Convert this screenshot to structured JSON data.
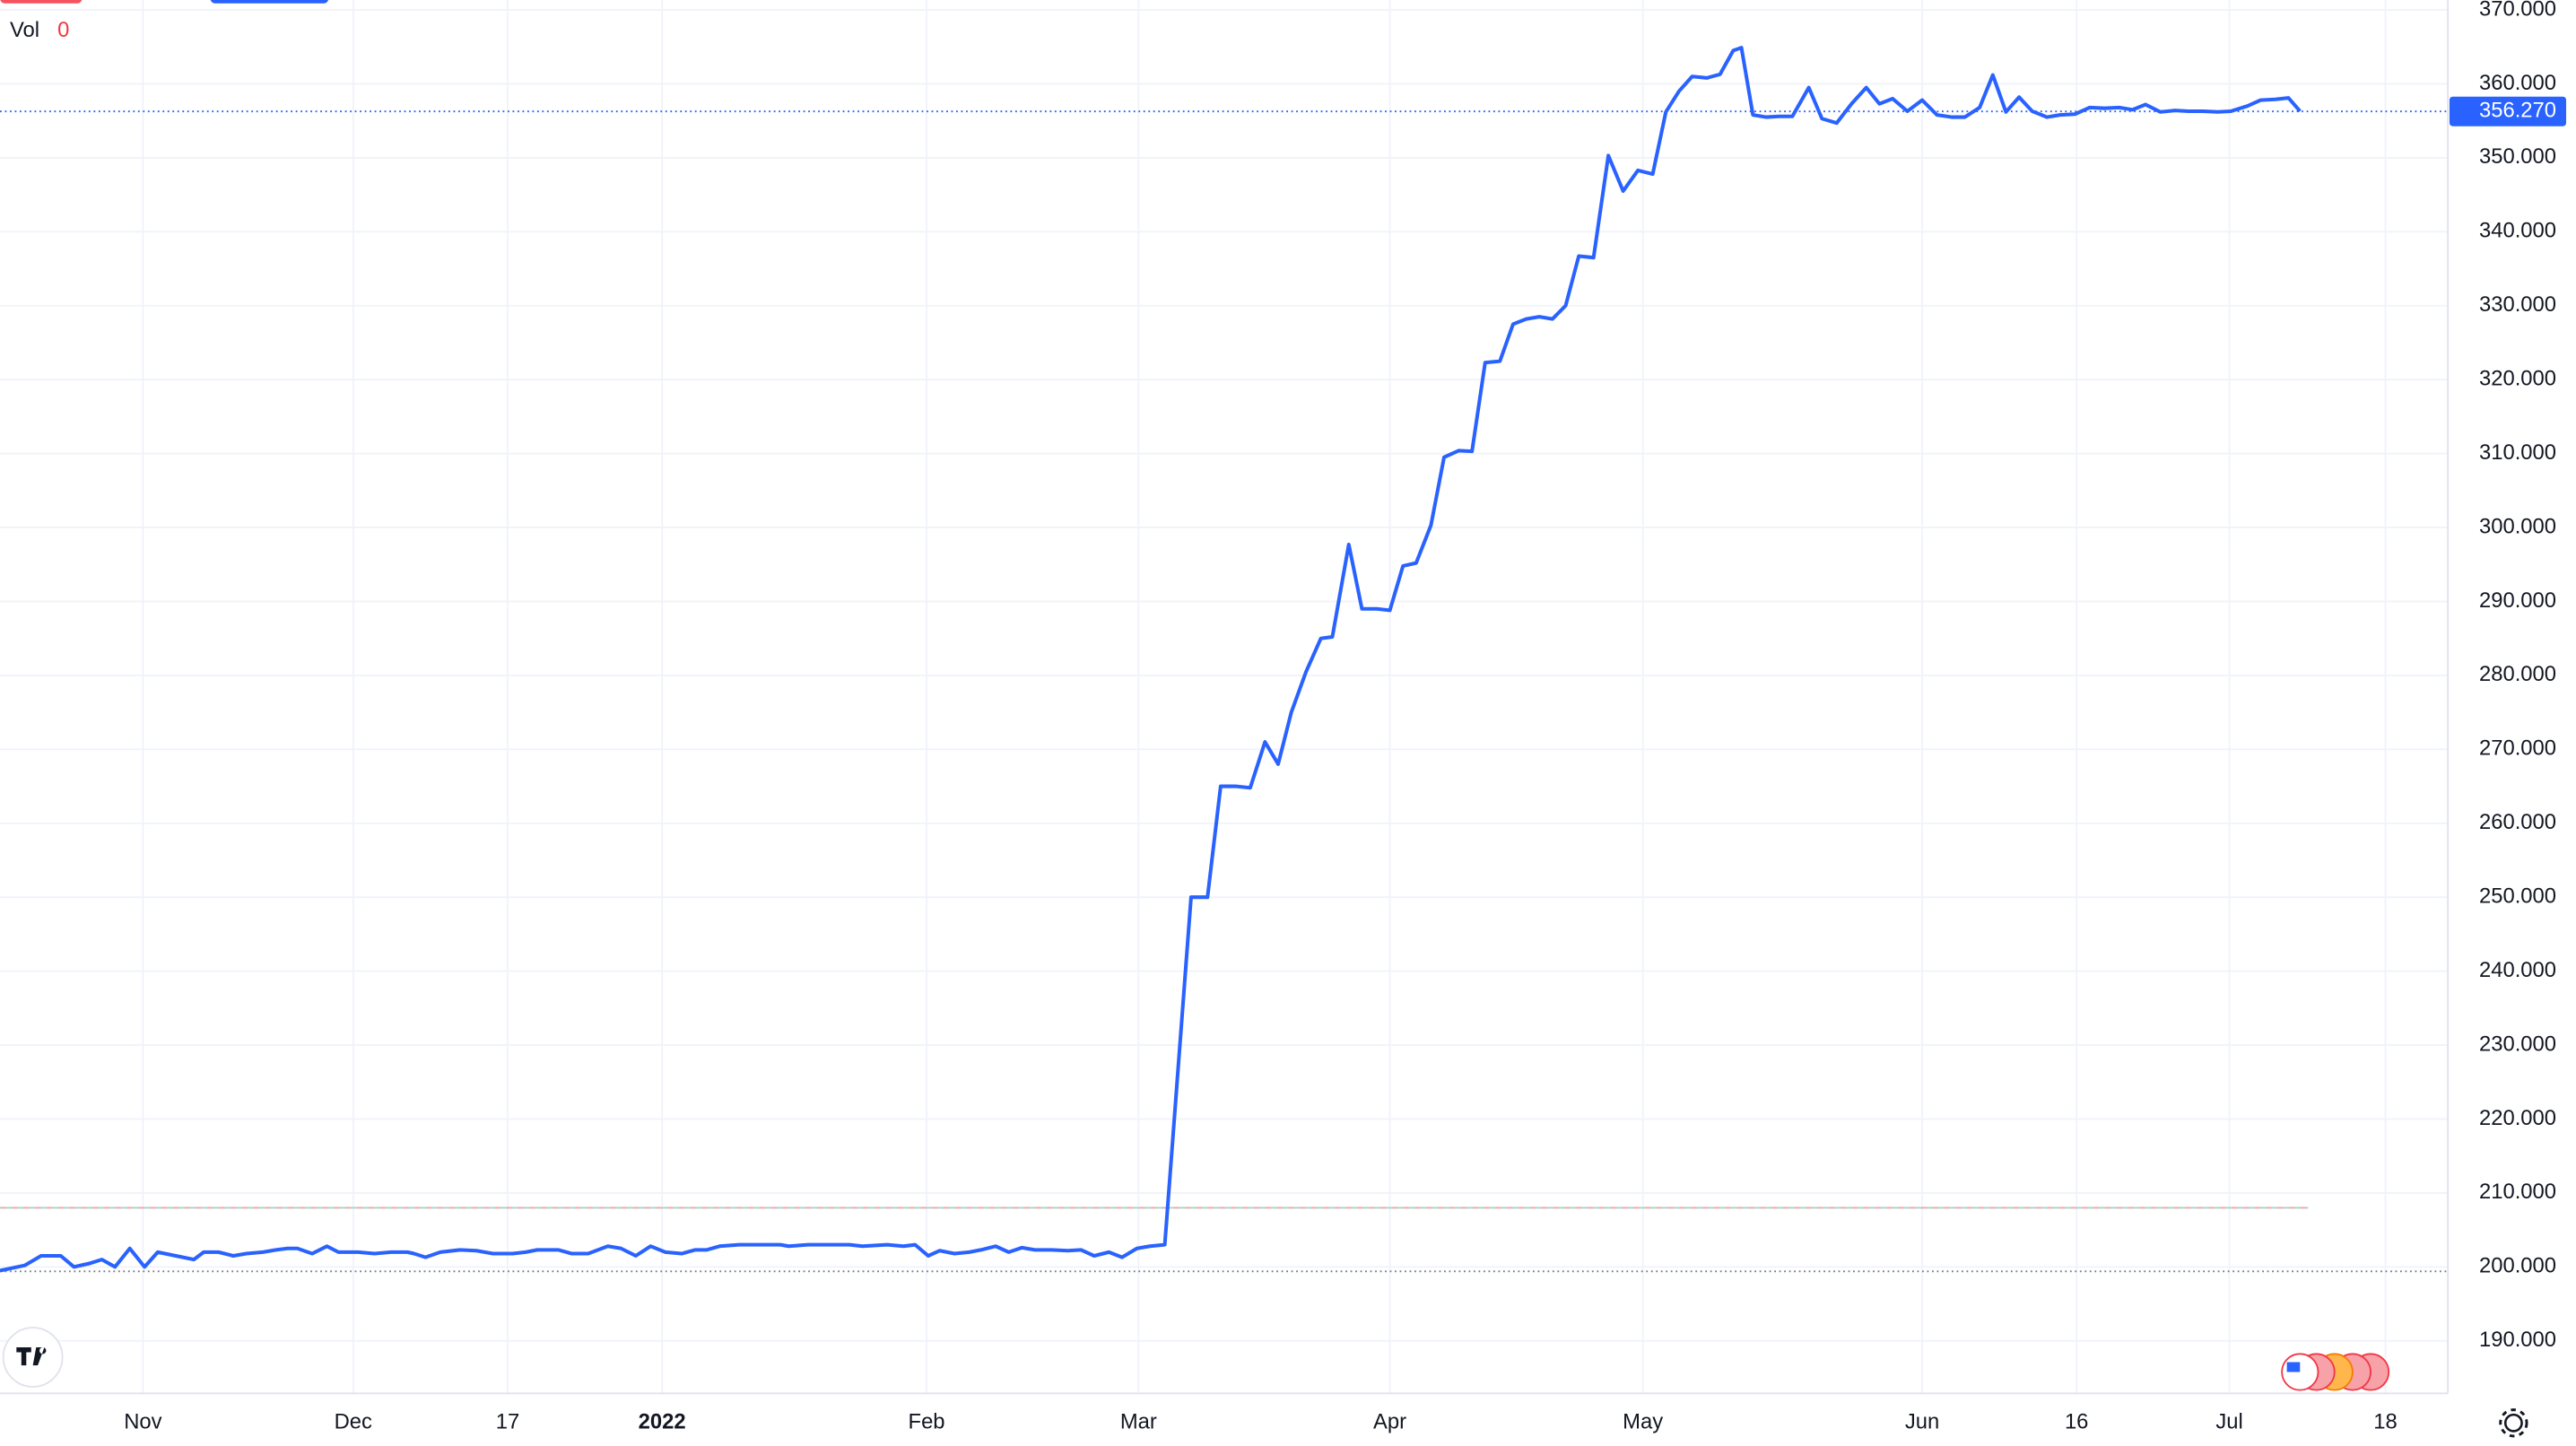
{
  "chart_data": {
    "type": "line",
    "legend_label": "Vol",
    "legend_value": "0",
    "x": [
      0,
      15,
      25,
      37,
      45,
      55,
      62,
      70,
      79,
      88,
      96,
      107,
      118,
      124,
      133,
      142,
      150,
      160,
      168,
      175,
      181,
      190,
      199,
      206,
      218,
      228,
      238,
      248,
      252,
      259,
      268,
      280,
      290,
      300,
      312,
      320,
      327,
      340,
      348,
      358,
      370,
      378,
      387,
      396,
      405,
      415,
      423,
      430,
      438,
      450,
      462,
      475,
      480,
      492,
      505,
      517,
      525,
      540,
      550,
      557,
      565,
      572,
      581,
      590,
      597,
      606,
      614,
      622,
      630,
      640,
      650,
      658,
      666,
      675,
      683,
      692,
      700,
      709,
      725,
      735,
      743,
      752,
      761,
      770,
      778,
      786,
      795,
      804,
      811,
      821,
      829,
      838,
      846,
      854,
      862,
      871,
      879,
      888,
      896,
      904,
      913,
      921,
      929,
      937,
      945,
      953,
      961,
      970,
      979,
      988,
      997,
      1006,
      1014,
      1022,
      1030,
      1039,
      1047,
      1055,
      1060,
      1067,
      1075,
      1083,
      1091,
      1101,
      1109,
      1118,
      1127,
      1136,
      1144,
      1152,
      1161,
      1170,
      1179,
      1188,
      1196,
      1205,
      1213,
      1221,
      1229,
      1237,
      1246,
      1254,
      1263,
      1272,
      1281,
      1290,
      1298,
      1306,
      1315,
      1324,
      1332,
      1341,
      1350,
      1358,
      1368,
      1376,
      1385,
      1393,
      1400
    ],
    "values": [
      199.5,
      200.2,
      201.5,
      201.5,
      200,
      200.5,
      201,
      200,
      202.5,
      200,
      202,
      201.5,
      201,
      202,
      202,
      201.5,
      201.8,
      202,
      202.3,
      202.5,
      202.5,
      201.8,
      202.8,
      202,
      202,
      201.8,
      202,
      202,
      201.8,
      201.3,
      202,
      202.3,
      202.2,
      201.8,
      201.8,
      202,
      202.3,
      202.3,
      201.8,
      201.8,
      202.8,
      202.5,
      201.5,
      202.8,
      202,
      201.8,
      202.3,
      202.3,
      202.8,
      203,
      203,
      203,
      202.8,
      203,
      203,
      203,
      202.8,
      203,
      202.8,
      203,
      201.5,
      202.2,
      201.8,
      202,
      202.3,
      202.8,
      202,
      202.6,
      202.3,
      202.3,
      202.2,
      202.3,
      201.5,
      202,
      201.3,
      202.5,
      202.8,
      203,
      250,
      250,
      265,
      265,
      264.8,
      271,
      268,
      275,
      280.5,
      285,
      285.2,
      297.7,
      289,
      289,
      288.8,
      294.8,
      295.2,
      300.3,
      309.5,
      310.4,
      310.3,
      322.3,
      322.5,
      327.5,
      328.2,
      328.5,
      328.2,
      330,
      336.7,
      336.5,
      350.3,
      345.5,
      348.3,
      347.8,
      356.2,
      359,
      361,
      360.8,
      361.3,
      364.5,
      364.9,
      355.8,
      355.5,
      355.6,
      355.6,
      359.5,
      355.3,
      354.7,
      357.3,
      359.5,
      357.3,
      358,
      356.3,
      357.8,
      355.8,
      355.5,
      355.5,
      356.8,
      361.2,
      356.2,
      358.2,
      356.3,
      355.5,
      355.8,
      355.9,
      356.8,
      356.7,
      356.8,
      356.5,
      357.2,
      356.2,
      356.4,
      356.3,
      356.3,
      356.2,
      356.3,
      357,
      357.8,
      357.9,
      358.1,
      356.3
    ],
    "color": "#2962ff",
    "xlim": [
      0,
      1490
    ],
    "xticks": [
      {
        "value": 87,
        "label": "Nov"
      },
      {
        "value": 215,
        "label": "Dec"
      },
      {
        "value": 309,
        "label": "17"
      },
      {
        "value": 403,
        "label": "2022"
      },
      {
        "value": 564,
        "label": "Feb"
      },
      {
        "value": 693,
        "label": "Mar"
      },
      {
        "value": 846,
        "label": "Apr"
      },
      {
        "value": 1000,
        "label": "May"
      },
      {
        "value": 1170,
        "label": "Jun"
      },
      {
        "value": 1264,
        "label": "16"
      },
      {
        "value": 1357,
        "label": "Jul"
      },
      {
        "value": 1452,
        "label": "18"
      }
    ],
    "ylim": [
      182.9,
      371.33
    ],
    "yticks": [
      {
        "value": 190,
        "label": "190.000"
      },
      {
        "value": 200,
        "label": "200.000"
      },
      {
        "value": 210,
        "label": "210.000"
      },
      {
        "value": 220,
        "label": "220.000"
      },
      {
        "value": 230,
        "label": "230.000"
      },
      {
        "value": 240,
        "label": "240.000"
      },
      {
        "value": 250,
        "label": "250.000"
      },
      {
        "value": 260,
        "label": "260.000"
      },
      {
        "value": 270,
        "label": "270.000"
      },
      {
        "value": 280,
        "label": "280.000"
      },
      {
        "value": 290,
        "label": "290.000"
      },
      {
        "value": 300,
        "label": "300.000"
      },
      {
        "value": 310,
        "label": "310.000"
      },
      {
        "value": 320,
        "label": "320.000"
      },
      {
        "value": 330,
        "label": "330.000"
      },
      {
        "value": 340,
        "label": "340.000"
      },
      {
        "value": 350,
        "label": "350.000"
      },
      {
        "value": 360,
        "label": "360.000"
      },
      {
        "value": 370,
        "label": "370.000"
      }
    ],
    "grid": true,
    "last_price": {
      "value": 356.27,
      "label": "356.270"
    },
    "reference_level": 208,
    "low_level": 199.4
  }
}
